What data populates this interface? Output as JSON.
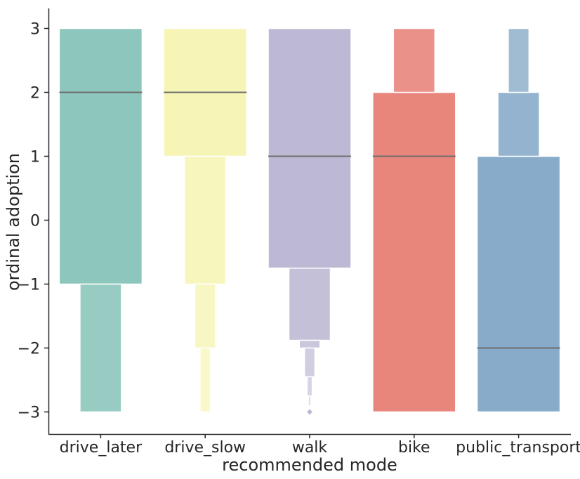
{
  "chart_data": {
    "type": "letter-value boxen plot",
    "xlabel": "recommended mode",
    "ylabel": "ordinal adoption",
    "ylim": [
      -3.3,
      3.3
    ],
    "yticks": [
      3,
      2,
      1,
      0,
      -1,
      -2,
      -3
    ],
    "ytick_labels": [
      "3",
      "2",
      "1",
      "0",
      "−1",
      "−2",
      "−3"
    ],
    "categories": [
      "drive_later",
      "drive_slow",
      "walk",
      "bike",
      "public_transport"
    ],
    "grid": false,
    "median_color": "#6e6e6e",
    "series": [
      {
        "category": "drive_later",
        "color": "#8dc6bc",
        "median": 2,
        "boxes": [
          {
            "level": 0,
            "low": -1,
            "high": 3
          },
          {
            "level": 1,
            "low": -3,
            "high": -1
          }
        ],
        "outliers": []
      },
      {
        "category": "drive_slow",
        "color": "#f6f5b5",
        "median": 2,
        "boxes": [
          {
            "level": 0,
            "low": 1,
            "high": 3
          },
          {
            "level": 1,
            "low": -1,
            "high": 1
          },
          {
            "level": 2,
            "low": -2,
            "high": -1
          },
          {
            "level": 3,
            "low": -3,
            "high": -2
          }
        ],
        "outliers": []
      },
      {
        "category": "walk",
        "color": "#bdb9d4",
        "median": 1,
        "boxes": [
          {
            "level": 0,
            "low": -0.75,
            "high": 3
          },
          {
            "level": 1,
            "low": -1.88,
            "high": -0.75
          },
          {
            "level": 2,
            "low": -2.0,
            "high": -1.88
          },
          {
            "level": 3,
            "low": -2.45,
            "high": -2.0
          },
          {
            "level": 4,
            "low": -2.75,
            "high": -2.45
          },
          {
            "level": 5,
            "low": -2.9,
            "high": -2.75
          }
        ],
        "outliers": [
          -3
        ]
      },
      {
        "category": "bike",
        "color": "#e8867c",
        "median": 1,
        "boxes": [
          {
            "level": 0,
            "low": -3,
            "high": 2
          },
          {
            "level": 1,
            "low": 2,
            "high": 3
          }
        ],
        "outliers": []
      },
      {
        "category": "public_transport",
        "color": "#87abc8",
        "median": -2,
        "boxes": [
          {
            "level": 0,
            "low": -3,
            "high": 1
          },
          {
            "level": 1,
            "low": 1,
            "high": 2
          },
          {
            "level": 2,
            "low": 2,
            "high": 3
          }
        ],
        "outliers": []
      }
    ]
  }
}
